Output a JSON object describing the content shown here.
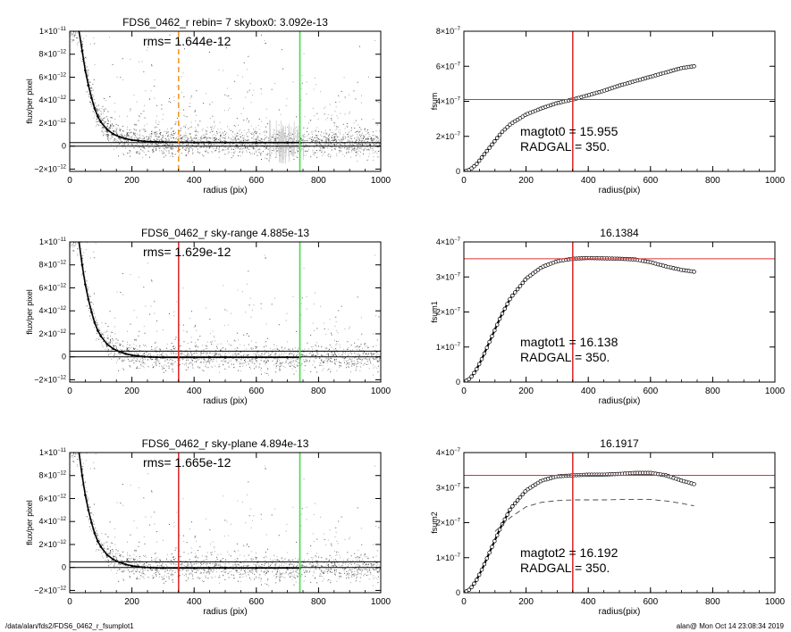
{
  "footer": {
    "path": "/data/alan/fds2/FDS6_0462_r_fsumplot1",
    "stamp": "alan@  Mon Oct 14 23:08:34 2019"
  },
  "chart_data": [
    {
      "type": "scatter",
      "title": "FDS6_0462_r rebin= 7    skybox0:  3.092e-13",
      "annotation": "rms= 1.644e-12",
      "xlabel": "radius (pix)",
      "ylabel": "flux/per pixel",
      "xlim": [
        0,
        1000
      ],
      "ylim": [
        -2.2e-12,
        1e-11
      ],
      "xticks": [
        0,
        200,
        400,
        600,
        800,
        1000
      ],
      "xtick_labels": [
        "0",
        "200",
        "400",
        "600",
        "800",
        "1000"
      ],
      "yticks": [
        -2e-12,
        0,
        2e-12,
        4e-12,
        6e-12,
        8e-12,
        1e-11
      ],
      "ytick_labels": [
        [
          "−2×10",
          "−12"
        ],
        [
          "0",
          ""
        ],
        [
          "2×10",
          "−12"
        ],
        [
          "4×10",
          "−12"
        ],
        [
          "6×10",
          "−12"
        ],
        [
          "8×10",
          "−12"
        ],
        [
          "1×10",
          "−11"
        ]
      ],
      "hlines": [
        0,
        3.092e-13
      ],
      "vlines": [
        {
          "x": 350,
          "color": "#f39c2a",
          "style": "dashed"
        },
        {
          "x": 740,
          "color": "#44dd44",
          "style": "solid"
        }
      ],
      "profile": {
        "x": [
          30,
          40,
          50,
          60,
          70,
          80,
          90,
          100,
          120,
          140,
          160,
          180,
          200,
          220,
          240,
          260,
          280,
          300,
          350,
          400,
          450,
          500,
          600,
          700,
          740
        ],
        "y": [
          1e-11,
          8.3e-12,
          6.6e-12,
          5.3e-12,
          4.2e-12,
          3.3e-12,
          2.6e-12,
          2.1e-12,
          1.45e-12,
          1.05e-12,
          8e-13,
          6.5e-13,
          5.3e-13,
          4.7e-13,
          4.2e-13,
          3.9e-13,
          3.7e-13,
          3.5e-13,
          3.3e-13,
          3.2e-13,
          3.15e-13,
          3.1e-13,
          3.1e-13,
          3.1e-13,
          3.1e-13
        ]
      }
    },
    {
      "type": "line",
      "title": "",
      "annotation_lines": [
        "magtot0 = 15.955",
        "RADGAL =    350."
      ],
      "xlabel": "radius(pix)",
      "ylabel": "fsum",
      "xlim": [
        0,
        1000
      ],
      "ylim": [
        0,
        8e-07
      ],
      "xticks": [
        0,
        200,
        400,
        600,
        800,
        1000
      ],
      "xtick_labels": [
        "0",
        "200",
        "400",
        "600",
        "800",
        "1000"
      ],
      "yticks": [
        0,
        2e-07,
        4e-07,
        6e-07,
        8e-07
      ],
      "ytick_labels": [
        [
          "0",
          ""
        ],
        [
          "2×10",
          "−7"
        ],
        [
          "4×10",
          "−7"
        ],
        [
          "6×10",
          "−7"
        ],
        [
          "8×10",
          "−7"
        ]
      ],
      "hlines": [
        4.1e-07
      ],
      "vlines": [
        {
          "x": 350,
          "color": "#e03030",
          "style": "solid"
        }
      ],
      "series": [
        {
          "x": [
            0,
            20,
            40,
            60,
            80,
            100,
            120,
            150,
            200,
            250,
            300,
            350,
            400,
            450,
            500,
            550,
            600,
            650,
            700,
            740
          ],
          "y": [
            0,
            1e-08,
            4e-08,
            8.5e-08,
            1.3e-07,
            1.75e-07,
            2.2e-07,
            2.7e-07,
            3.25e-07,
            3.6e-07,
            3.9e-07,
            4.1e-07,
            4.35e-07,
            4.6e-07,
            4.9e-07,
            5.15e-07,
            5.4e-07,
            5.65e-07,
            5.9e-07,
            6e-07
          ]
        }
      ]
    },
    {
      "type": "scatter",
      "title": "FDS6_0462_r sky-range  4.885e-13",
      "annotation": "rms= 1.629e-12",
      "xlabel": "radius (pix)",
      "ylabel": "flux/per pixel",
      "xlim": [
        0,
        1000
      ],
      "ylim": [
        -2.2e-12,
        1e-11
      ],
      "xticks": [
        0,
        200,
        400,
        600,
        800,
        1000
      ],
      "xtick_labels": [
        "0",
        "200",
        "400",
        "600",
        "800",
        "1000"
      ],
      "yticks": [
        -2e-12,
        0,
        2e-12,
        4e-12,
        6e-12,
        8e-12,
        1e-11
      ],
      "ytick_labels": [
        [
          "−2×10",
          "−12"
        ],
        [
          "0",
          ""
        ],
        [
          "2×10",
          "−12"
        ],
        [
          "4×10",
          "−12"
        ],
        [
          "6×10",
          "−12"
        ],
        [
          "8×10",
          "−12"
        ],
        [
          "1×10",
          "−11"
        ]
      ],
      "hlines": [
        0,
        4.885e-13
      ],
      "vlines": [
        {
          "x": 350,
          "color": "#e03030",
          "style": "solid"
        },
        {
          "x": 740,
          "color": "#44dd44",
          "style": "solid"
        }
      ],
      "profile": {
        "x": [
          30,
          40,
          50,
          60,
          70,
          80,
          90,
          100,
          120,
          140,
          160,
          180,
          200,
          220,
          240,
          260,
          280,
          300,
          350,
          400,
          450,
          500,
          600,
          700,
          740
        ],
        "y": [
          1e-11,
          8e-12,
          6.3e-12,
          5e-12,
          3.9e-12,
          3e-12,
          2.3e-12,
          1.8e-12,
          1.1e-12,
          7e-13,
          4.4e-13,
          2.6e-13,
          1.4e-13,
          6e-14,
          1e-14,
          -2e-14,
          -4e-14,
          -5e-14,
          -6e-14,
          -6e-14,
          -5e-14,
          -5e-14,
          -5e-14,
          -5e-14,
          -5e-14
        ]
      }
    },
    {
      "type": "line",
      "title": "16.1384",
      "annotation_lines": [
        "magtot1 = 16.138",
        "RADGAL =    350."
      ],
      "xlabel": "radius(pix)",
      "ylabel": "fsum1",
      "xlim": [
        0,
        1000
      ],
      "ylim": [
        0,
        4e-07
      ],
      "xticks": [
        0,
        200,
        400,
        600,
        800,
        1000
      ],
      "xtick_labels": [
        "0",
        "200",
        "400",
        "600",
        "800",
        "1000"
      ],
      "yticks": [
        0,
        1e-07,
        2e-07,
        3e-07,
        4e-07
      ],
      "ytick_labels": [
        [
          "0",
          ""
        ],
        [
          "1×10",
          "−7"
        ],
        [
          "2×10",
          "−7"
        ],
        [
          "3×10",
          "−7"
        ],
        [
          "4×10",
          "−7"
        ]
      ],
      "hlines": [
        3.52e-07
      ],
      "vlines": [
        {
          "x": 350,
          "color": "#e03030",
          "style": "solid"
        }
      ],
      "series": [
        {
          "x": [
            0,
            20,
            40,
            60,
            80,
            100,
            120,
            150,
            200,
            250,
            300,
            350,
            400,
            450,
            500,
            550,
            600,
            650,
            700,
            740
          ],
          "y": [
            0,
            1e-08,
            3.5e-08,
            7e-08,
            1.1e-07,
            1.5e-07,
            1.9e-07,
            2.4e-07,
            2.95e-07,
            3.28e-07,
            3.45e-07,
            3.52e-07,
            3.54e-07,
            3.53e-07,
            3.52e-07,
            3.5e-07,
            3.42e-07,
            3.3e-07,
            3.2e-07,
            3.15e-07
          ]
        }
      ]
    },
    {
      "type": "scatter",
      "title": "FDS6_0462_r sky-plane  4.894e-13",
      "annotation": "rms= 1.665e-12",
      "xlabel": "radius (pix)",
      "ylabel": "flux/per pixel",
      "xlim": [
        0,
        1000
      ],
      "ylim": [
        -2.2e-12,
        1e-11
      ],
      "xticks": [
        0,
        200,
        400,
        600,
        800,
        1000
      ],
      "xtick_labels": [
        "0",
        "200",
        "400",
        "600",
        "800",
        "1000"
      ],
      "yticks": [
        -2e-12,
        0,
        2e-12,
        4e-12,
        6e-12,
        8e-12,
        1e-11
      ],
      "ytick_labels": [
        [
          "−2×10",
          "−12"
        ],
        [
          "0",
          ""
        ],
        [
          "2×10",
          "−12"
        ],
        [
          "4×10",
          "−12"
        ],
        [
          "6×10",
          "−12"
        ],
        [
          "8×10",
          "−12"
        ],
        [
          "1×10",
          "−11"
        ]
      ],
      "hlines": [
        0,
        4.894e-13
      ],
      "vlines": [
        {
          "x": 350,
          "color": "#e03030",
          "style": "solid"
        },
        {
          "x": 740,
          "color": "#44dd44",
          "style": "solid"
        }
      ],
      "profile": {
        "x": [
          30,
          40,
          50,
          60,
          70,
          80,
          90,
          100,
          120,
          140,
          160,
          180,
          200,
          220,
          240,
          260,
          280,
          300,
          350,
          400,
          450,
          500,
          600,
          700,
          740
        ],
        "y": [
          1e-11,
          8e-12,
          6.3e-12,
          5e-12,
          3.9e-12,
          3e-12,
          2.3e-12,
          1.8e-12,
          1.1e-12,
          7e-13,
          4.4e-13,
          2.6e-13,
          1.4e-13,
          6e-14,
          1e-14,
          -2e-14,
          -4e-14,
          -5e-14,
          -6e-14,
          -6e-14,
          -5e-14,
          -5e-14,
          -5e-14,
          -5e-14,
          -5e-14
        ]
      }
    },
    {
      "type": "line",
      "title": "16.1917",
      "annotation_lines": [
        "magtot2 = 16.192",
        "RADGAL =    350."
      ],
      "xlabel": "radius(pix)",
      "ylabel": "fsum2",
      "xlim": [
        0,
        1000
      ],
      "ylim": [
        0,
        4e-07
      ],
      "xticks": [
        0,
        200,
        400,
        600,
        800,
        1000
      ],
      "xtick_labels": [
        "0",
        "200",
        "400",
        "600",
        "800",
        "1000"
      ],
      "yticks": [
        0,
        1e-07,
        2e-07,
        3e-07,
        4e-07
      ],
      "ytick_labels": [
        [
          "0",
          ""
        ],
        [
          "1×10",
          "−7"
        ],
        [
          "2×10",
          "−7"
        ],
        [
          "3×10",
          "−7"
        ],
        [
          "4×10",
          "−7"
        ]
      ],
      "hlines": [
        3.35e-07
      ],
      "vlines": [
        {
          "x": 350,
          "color": "#e03030",
          "style": "solid"
        }
      ],
      "series": [
        {
          "x": [
            0,
            20,
            40,
            60,
            80,
            100,
            120,
            150,
            200,
            250,
            300,
            350,
            400,
            450,
            500,
            550,
            600,
            650,
            700,
            740
          ],
          "y": [
            0,
            1e-08,
            3.5e-08,
            7e-08,
            1.1e-07,
            1.5e-07,
            1.9e-07,
            2.4e-07,
            2.92e-07,
            3.2e-07,
            3.32e-07,
            3.35e-07,
            3.37e-07,
            3.37e-07,
            3.39e-07,
            3.42e-07,
            3.42e-07,
            3.35e-07,
            3.2e-07,
            3.1e-07
          ]
        },
        {
          "x": [
            100,
            150,
            200,
            250,
            300,
            350,
            400,
            450,
            500,
            550,
            600,
            650,
            700,
            740
          ],
          "y": [
            1.75e-07,
            2.15e-07,
            2.45e-07,
            2.58e-07,
            2.63e-07,
            2.65e-07,
            2.65e-07,
            2.65e-07,
            2.66e-07,
            2.66e-07,
            2.66e-07,
            2.62e-07,
            2.55e-07,
            2.48e-07
          ],
          "style": "dashed"
        }
      ]
    }
  ]
}
